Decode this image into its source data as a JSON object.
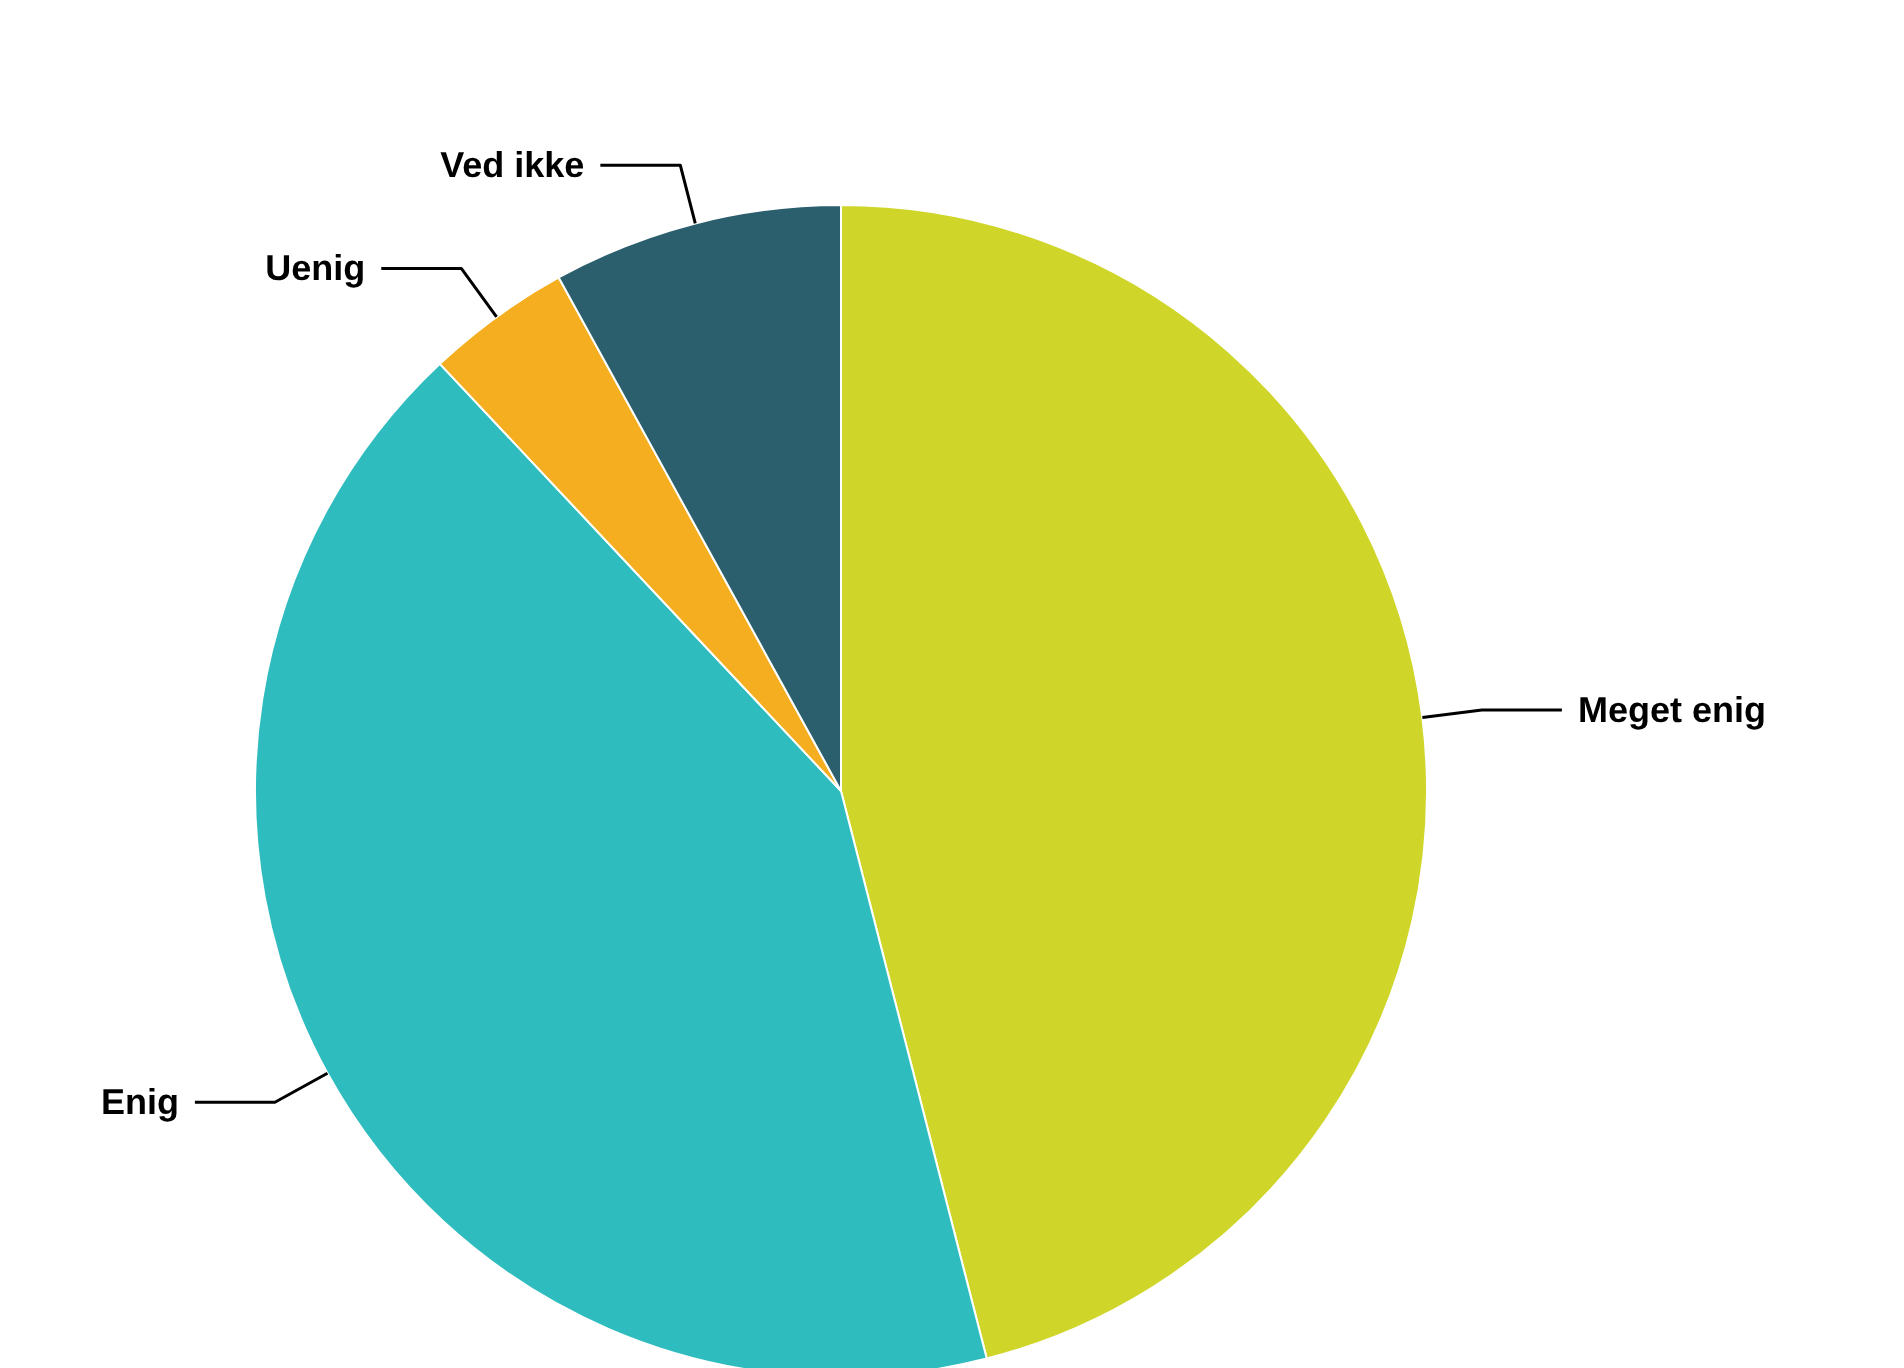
{
  "chart_data": {
    "type": "pie",
    "categories": [
      "Meget enig",
      "Enig",
      "Uenig",
      "Ved ikke"
    ],
    "values": [
      46,
      42,
      4,
      8
    ],
    "colors": [
      "#cfd629",
      "#2fbcbf",
      "#f5ae1f",
      "#2b5f6e"
    ]
  }
}
